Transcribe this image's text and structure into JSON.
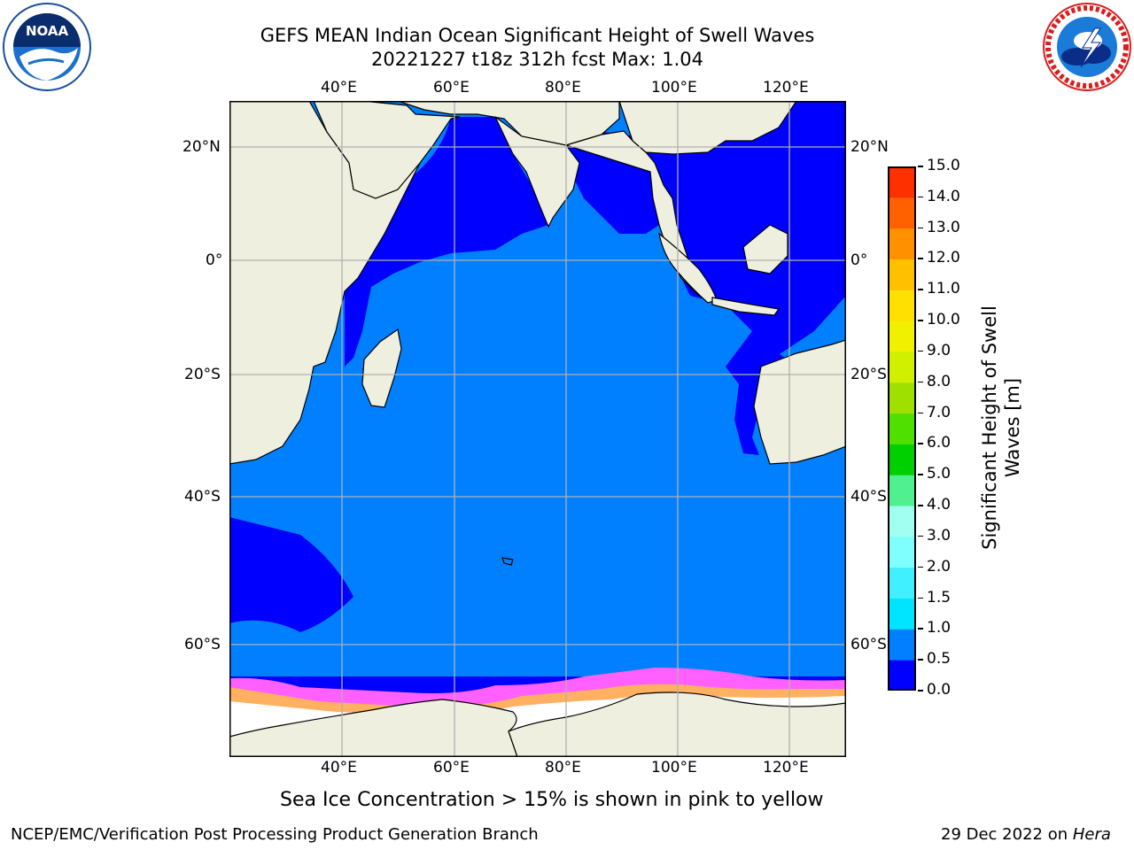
{
  "title_line1": "GEFS MEAN Indian Ocean Significant Height of Swell Waves",
  "title_line2": "20221227 t18z 312h fcst   Max: 1.04",
  "top_lon_labels": [
    "40°E",
    "60°E",
    "80°E",
    "100°E",
    "120°E"
  ],
  "bottom_lon_labels": [
    "40°E",
    "60°E",
    "80°E",
    "100°E",
    "120°E"
  ],
  "left_lat_labels": [
    "20°N",
    "0°",
    "20°S",
    "40°S",
    "60°S"
  ],
  "right_lat_labels": [
    "20°N",
    "0°",
    "20°S",
    "40°S",
    "60°S"
  ],
  "colorbar": {
    "title_line1": "Significant Height of Swell",
    "title_line2": "Waves [m]",
    "ticks": [
      "0.0",
      "0.5",
      "1.0",
      "1.5",
      "2.0",
      "3.0",
      "4.0",
      "5.0",
      "6.0",
      "7.0",
      "8.0",
      "9.0",
      "10.0",
      "11.0",
      "12.0",
      "13.0",
      "14.0",
      "15.0"
    ],
    "colors": [
      "#0000ff",
      "#0080ff",
      "#00e5ff",
      "#40f0ff",
      "#80ffff",
      "#a0fff0",
      "#50f090",
      "#00d000",
      "#50e000",
      "#a0e000",
      "#d0f000",
      "#f0f000",
      "#ffe000",
      "#ffc000",
      "#ff9000",
      "#ff6000",
      "#ff3000"
    ]
  },
  "caption": "Sea Ice Concentration > 15% is shown in pink to yellow",
  "footer_left": "NCEP/EMC/Verification Post Processing Product Generation Branch",
  "footer_right_text": "29 Dec 2022 on ",
  "footer_right_italic": "Hera",
  "logo_left_text": "NOAA",
  "logo_left_ring": "NATIONAL OCEANIC AND ATMOSPHERIC ADMINISTRATION · U.S. DEPARTMENT OF COMMERCE",
  "logo_right_ring": "NATIONAL WEATHER SERVICE",
  "colors": {
    "land": "#efefdf",
    "ocean_shallow": "#0000ff",
    "ocean": "#0080ff",
    "grid": "#b0b0b0",
    "ice_pink": "#ff60ff",
    "ice_orange": "#ffb060",
    "ice_white": "#ffffff"
  }
}
